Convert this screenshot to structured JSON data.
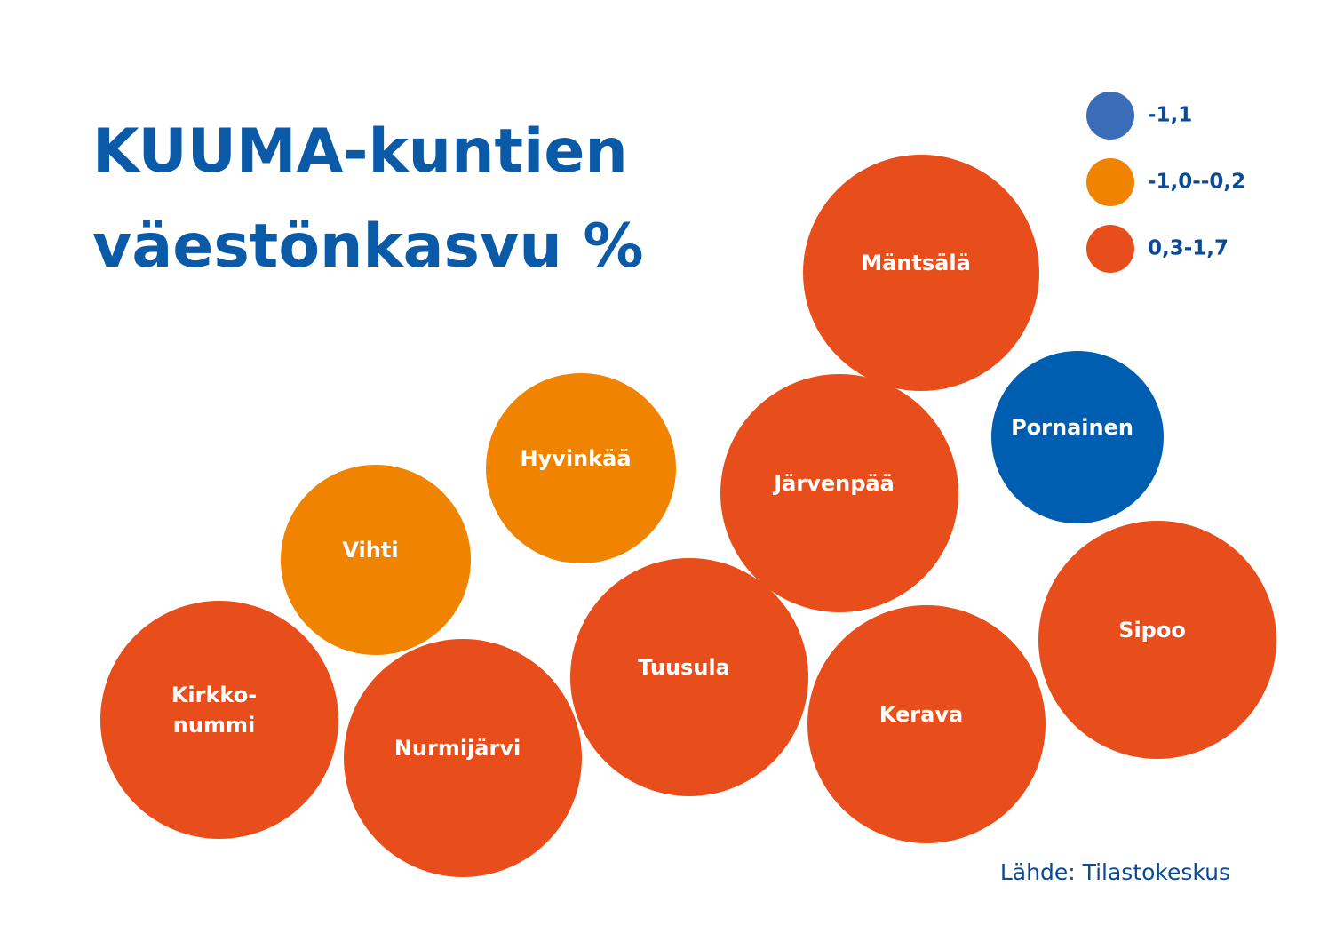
{
  "title": {
    "lines": [
      "KUUMA-kuntien",
      "väestönkasvu %"
    ]
  },
  "legend": [
    {
      "label": "-1,1",
      "color": "#3a6cb8"
    },
    {
      "label": "-1,0--0,2",
      "color": "#f08300"
    },
    {
      "label": "0,3-1,7",
      "color": "#e84e1b"
    }
  ],
  "bubbles": [
    {
      "lines": [
        "Mäntsälä"
      ],
      "group": 2
    },
    {
      "lines": [
        "Pornainen"
      ],
      "group": 0
    },
    {
      "lines": [
        "Hyvinkää"
      ],
      "group": 1
    },
    {
      "lines": [
        "Järvenpää"
      ],
      "group": 2
    },
    {
      "lines": [
        "Vihti"
      ],
      "group": 1
    },
    {
      "lines": [
        "Sipoo"
      ],
      "group": 2
    },
    {
      "lines": [
        "Tuusula"
      ],
      "group": 2
    },
    {
      "lines": [
        "Kerava"
      ],
      "group": 2
    },
    {
      "lines": [
        "Kirkko-",
        "nummi"
      ],
      "group": 2
    },
    {
      "lines": [
        "Nurmijärvi"
      ],
      "group": 2
    }
  ],
  "source": "Lähde: Tilastokeskus"
}
